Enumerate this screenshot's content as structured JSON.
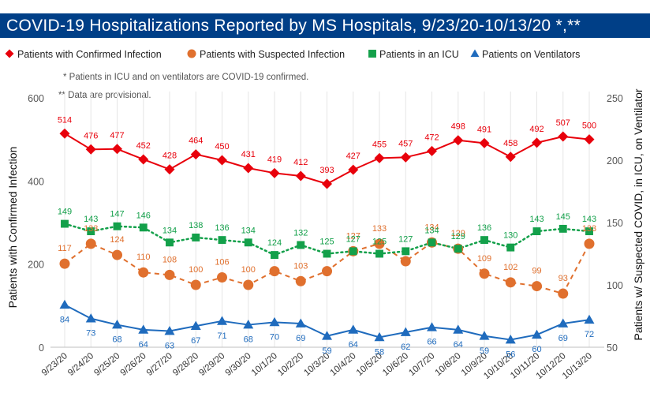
{
  "title": "COVID-19 Hospitalizations Reported by MS Hospitals, 9/23/20-10/13/20 *,**",
  "notes": {
    "icu_vent": "* Patients in ICU and on ventilators are COVID-19 confirmed.",
    "provisional": "** Data are provisional."
  },
  "colors": {
    "title_band": "#003f87",
    "confirmed": "#e8000b",
    "suspected": "#e0702e",
    "icu": "#13a04a",
    "vent": "#1f6bbd"
  },
  "chart_data": {
    "type": "line",
    "title": "COVID-19 Hospitalizations Reported by MS Hospitals, 9/23/20-10/13/20 *,**",
    "categories": [
      "9/23/20",
      "9/24/20",
      "9/25/20",
      "9/26/20",
      "9/27/20",
      "9/28/20",
      "9/29/20",
      "9/30/20",
      "10/1/20",
      "10/2/20",
      "10/3/20",
      "10/4/20",
      "10/5/20",
      "10/6/20",
      "10/7/20",
      "10/8/20",
      "10/9/20",
      "10/10/20",
      "10/11/20",
      "10/12/20",
      "10/13/20"
    ],
    "ylabel_left": "Patients with Confirmed Infection",
    "ylabel_right": "Patients w/ Suspected COVID, in ICU, on Ventilator",
    "ylim_left": [
      0,
      600
    ],
    "yticks_left": [
      0,
      200,
      400,
      600
    ],
    "ylim_right": [
      50,
      250
    ],
    "yticks_right": [
      50,
      100,
      150,
      200,
      250
    ],
    "grid": "vertical",
    "legend_position": "top",
    "series": [
      {
        "name": "Patients with Confirmed Infection",
        "axis": "left",
        "marker": "diamond",
        "line": "solid",
        "values": [
          514,
          476,
          477,
          452,
          428,
          464,
          450,
          431,
          419,
          412,
          393,
          427,
          455,
          457,
          472,
          498,
          491,
          458,
          492,
          507,
          500
        ]
      },
      {
        "name": "Patients with Suspected Infection",
        "axis": "right",
        "marker": "circle",
        "line": "dashed",
        "values": [
          117,
          133,
          124,
          110,
          108,
          100,
          106,
          100,
          111,
          103,
          111,
          127,
          133,
          119,
          134,
          129,
          109,
          102,
          99,
          93,
          133
        ]
      },
      {
        "name": "Patients in an ICU",
        "axis": "right",
        "marker": "square",
        "line": "dotted",
        "values": [
          149,
          143,
          147,
          146,
          134,
          138,
          136,
          134,
          124,
          132,
          125,
          127,
          125,
          127,
          134,
          129,
          136,
          130,
          143,
          145,
          143
        ]
      },
      {
        "name": "Patients on Ventilators",
        "axis": "right",
        "marker": "triangle",
        "line": "solid",
        "values": [
          84,
          73,
          68,
          64,
          63,
          67,
          71,
          68,
          70,
          69,
          59,
          64,
          58,
          62,
          66,
          64,
          59,
          56,
          60,
          69,
          72
        ]
      }
    ],
    "data_labels": {
      "Patients with Confirmed Infection": [
        "514",
        "476",
        "477",
        "452",
        "428",
        "464",
        "450",
        "431",
        "419",
        "412",
        "393",
        "427",
        "455",
        "457",
        "472",
        "498",
        "491",
        "458",
        "492",
        "507",
        "500"
      ],
      "Patients with Suspected Infection": [
        "117",
        "133",
        "124",
        "110",
        "108",
        "100",
        "106",
        "100",
        "",
        "103",
        "",
        "127",
        "133",
        "",
        "134",
        "129",
        "109",
        "102",
        "99",
        "93",
        "133"
      ],
      "Patients in an ICU": [
        "149",
        "143",
        "147",
        "146",
        "134",
        "138",
        "136",
        "134",
        "124",
        "132",
        "125",
        "127",
        "125",
        "127",
        "134",
        "129",
        "136",
        "130",
        "143",
        "145",
        "143"
      ],
      "Patients on Ventilators": [
        "84",
        "73",
        "68",
        "64",
        "63",
        "67",
        "71",
        "68",
        "70",
        "69",
        "59",
        "64",
        "58",
        "62",
        "66",
        "64",
        "59",
        "56",
        "60",
        "69",
        "72"
      ]
    }
  }
}
